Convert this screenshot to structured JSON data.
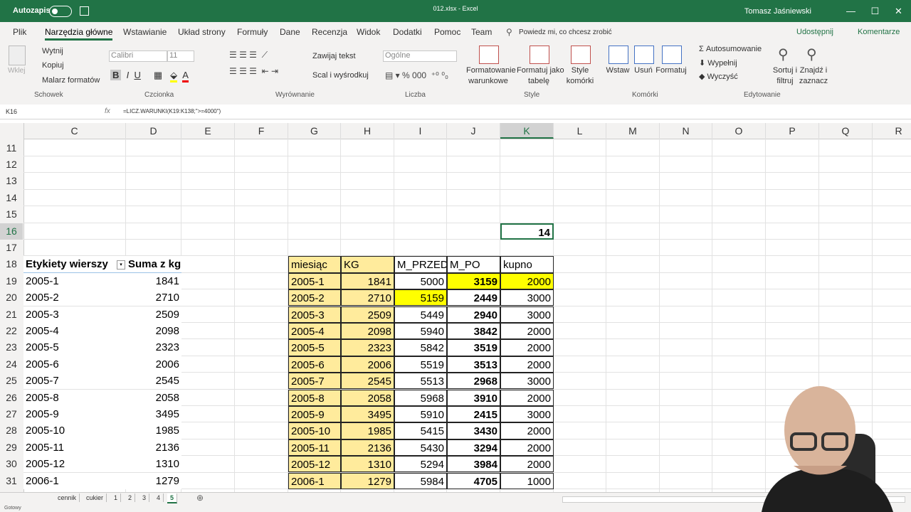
{
  "title_bar": {
    "autosave": "Autozapis",
    "file": "012.xlsx - Excel",
    "user": "Tomasz Jaśniewski"
  },
  "ribbon": {
    "tabs": [
      "Plik",
      "Narzędzia główne",
      "Wstawianie",
      "Układ strony",
      "Formuły",
      "Dane",
      "Recenzja",
      "Widok",
      "Dodatki",
      "Pomoc",
      "Team"
    ],
    "search": "Powiedz mi, co chcesz zrobić",
    "share": "Udostępnij",
    "comments": "Komentarze",
    "clipboard": {
      "paste": "Wklej",
      "cut": "Wytnij",
      "copy": "Kopiuj",
      "painter": "Malarz formatów",
      "label": "Schowek"
    },
    "font": {
      "name": "Calibri",
      "size": "11",
      "label": "Czcionka"
    },
    "alignment": {
      "wrap": "Zawijaj tekst",
      "merge": "Scal i wyśrodkuj",
      "label": "Wyrównanie"
    },
    "number": {
      "format": "Ogólne",
      "label": "Liczba"
    },
    "styles": {
      "conditional": [
        "Formatowanie",
        "warunkowe"
      ],
      "table": [
        "Formatuj jako",
        "tabelę"
      ],
      "cell": [
        "Style",
        "komórki"
      ],
      "label": "Style"
    },
    "cells": {
      "insert": "Wstaw",
      "delete": "Usuń",
      "format": "Formatuj",
      "label": "Komórki"
    },
    "editing": {
      "autosum": "Autosumowanie",
      "fill": "Wypełnij",
      "clear": "Wyczyść",
      "sort": [
        "Sortuj i",
        "filtruj"
      ],
      "find": [
        "Znajdź i",
        "zaznacz"
      ],
      "label": "Edytowanie"
    }
  },
  "formula_bar": {
    "name_box": "K16",
    "fx": "fx",
    "formula": "=LICZ.WARUNKI(K19:K138;\">=4000\")"
  },
  "grid": {
    "columns": [
      "C",
      "D",
      "E",
      "F",
      "G",
      "H",
      "I",
      "J",
      "K",
      "L",
      "M",
      "N",
      "O",
      "P",
      "Q",
      "R"
    ],
    "rows": [
      11,
      12,
      13,
      14,
      15,
      16,
      17,
      18,
      19,
      20,
      21,
      22,
      23,
      24,
      25,
      26,
      27,
      28,
      29,
      30,
      31
    ],
    "K16": 14
  },
  "pivot": {
    "header": [
      "Etykiety wierszy",
      "Suma z kg"
    ],
    "rows": [
      [
        "2005-1",
        1841
      ],
      [
        "2005-2",
        2710
      ],
      [
        "2005-3",
        2509
      ],
      [
        "2005-4",
        2098
      ],
      [
        "2005-5",
        2323
      ],
      [
        "2005-6",
        2006
      ],
      [
        "2005-7",
        2545
      ],
      [
        "2005-8",
        2058
      ],
      [
        "2005-9",
        3495
      ],
      [
        "2005-10",
        1985
      ],
      [
        "2005-11",
        2136
      ],
      [
        "2005-12",
        1310
      ],
      [
        "2006-1",
        1279
      ]
    ]
  },
  "table": {
    "header": [
      "miesiąc",
      "KG",
      "M_PRZED",
      "M_PO",
      "kupno"
    ],
    "rows": [
      [
        "2005-1",
        1841,
        5000,
        3159,
        2000
      ],
      [
        "2005-2",
        2710,
        5159,
        2449,
        3000
      ],
      [
        "2005-3",
        2509,
        5449,
        2940,
        3000
      ],
      [
        "2005-4",
        2098,
        5940,
        3842,
        2000
      ],
      [
        "2005-5",
        2323,
        5842,
        3519,
        2000
      ],
      [
        "2005-6",
        2006,
        5519,
        3513,
        2000
      ],
      [
        "2005-7",
        2545,
        5513,
        2968,
        3000
      ],
      [
        "2005-8",
        2058,
        5968,
        3910,
        2000
      ],
      [
        "2005-9",
        3495,
        5910,
        2415,
        3000
      ],
      [
        "2005-10",
        1985,
        5415,
        3430,
        2000
      ],
      [
        "2005-11",
        2136,
        5430,
        3294,
        2000
      ],
      [
        "2005-12",
        1310,
        5294,
        3984,
        2000
      ],
      [
        "2006-1",
        1279,
        5984,
        4705,
        1000
      ]
    ]
  },
  "sheets": [
    "cennik",
    "cukier",
    "1",
    "2",
    "3",
    "4",
    "5"
  ],
  "status": "Gotowy"
}
